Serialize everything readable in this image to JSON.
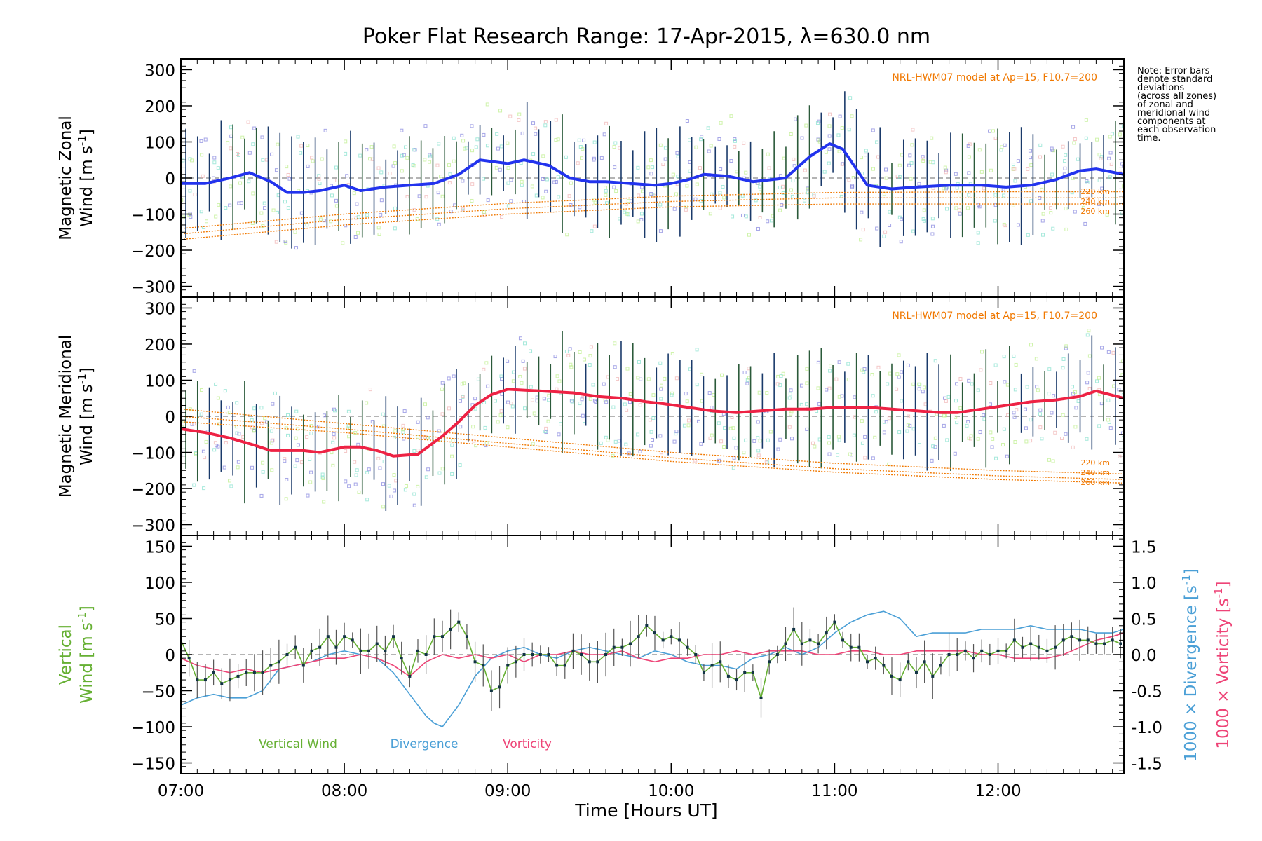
{
  "title": "Poker Flat Research Range: 17-Apr-2015, λ=630.0 nm",
  "note": "Note: Error bars\ndenote standard\ndeviations\n(across all zones)\nof zonal and\nmeridional wind\ncomponents at\neach observation\ntime.",
  "x_axis": {
    "label": "Time [Hours UT]",
    "tick_labels": [
      "07:00",
      "08:00",
      "09:00",
      "10:00",
      "11:00",
      "12:00"
    ]
  },
  "colors": {
    "zonal": "#2233ee",
    "meridional": "#ee2244",
    "model": "#f07800",
    "vertical": "#66b033",
    "divergence": "#4a9fd6",
    "vorticity": "#ee4477",
    "errorbar": "#222222",
    "scatter_a": "#8080dd",
    "scatter_b": "#80e0cc",
    "scatter_c": "#bbee88",
    "scatter_d": "#f0b0b0"
  },
  "chart_data": [
    {
      "type": "line",
      "panel": "zonal",
      "ylabel": "Magnetic Zonal\nWind [m s-1]",
      "ylim": [
        -330,
        330
      ],
      "yticks": [
        -300,
        -200,
        -100,
        0,
        100,
        200,
        300
      ],
      "xlim": [
        7.0,
        12.77
      ],
      "model_label": "NRL-HWM07 model at Ap=15, F10.7=200",
      "model_altitudes": [
        "220 km",
        "240 km",
        "260 km"
      ],
      "series": [
        {
          "name": "Zonal wind",
          "x": [
            7.0,
            7.15,
            7.3,
            7.42,
            7.55,
            7.65,
            7.75,
            7.85,
            8.0,
            8.1,
            8.25,
            8.4,
            8.55,
            8.7,
            8.83,
            9.0,
            9.1,
            9.25,
            9.38,
            9.5,
            9.6,
            9.75,
            9.9,
            10.0,
            10.1,
            10.2,
            10.35,
            10.5,
            10.6,
            10.7,
            10.85,
            10.97,
            11.05,
            11.2,
            11.35,
            11.5,
            11.7,
            11.9,
            12.05,
            12.2,
            12.35,
            12.5,
            12.6,
            12.77
          ],
          "values": [
            -15,
            -15,
            0,
            15,
            -10,
            -40,
            -40,
            -35,
            -20,
            -35,
            -25,
            -20,
            -15,
            10,
            50,
            40,
            50,
            35,
            0,
            -10,
            -10,
            -15,
            -20,
            -15,
            -5,
            10,
            5,
            -10,
            -5,
            0,
            60,
            95,
            80,
            -20,
            -30,
            -25,
            -20,
            -20,
            -25,
            -20,
            -5,
            20,
            25,
            10
          ]
        }
      ],
      "model": {
        "x": [
          7.0,
          8.0,
          9.0,
          10.0,
          11.0,
          12.0,
          12.77
        ],
        "220 km": [
          -140,
          -100,
          -70,
          -50,
          -40,
          -38,
          -38
        ],
        "240 km": [
          -155,
          -115,
          -85,
          -65,
          -55,
          -55,
          -55
        ],
        "260 km": [
          -170,
          -130,
          -100,
          -80,
          -72,
          -72,
          -72
        ]
      }
    },
    {
      "type": "line",
      "panel": "meridional",
      "ylabel": "Magnetic Meridional\nWind [m s-1]",
      "ylim": [
        -330,
        330
      ],
      "yticks": [
        -300,
        -200,
        -100,
        0,
        100,
        200,
        300
      ],
      "xlim": [
        7.0,
        12.77
      ],
      "model_label": "NRL-HWM07 model at Ap=15, F10.7=200",
      "model_altitudes": [
        "220 km",
        "240 km",
        "260 km"
      ],
      "series": [
        {
          "name": "Meridional wind",
          "x": [
            7.0,
            7.15,
            7.3,
            7.45,
            7.55,
            7.65,
            7.75,
            7.85,
            8.0,
            8.1,
            8.2,
            8.3,
            8.45,
            8.6,
            8.7,
            8.8,
            8.9,
            9.0,
            9.2,
            9.4,
            9.55,
            9.7,
            9.85,
            9.95,
            10.1,
            10.25,
            10.4,
            10.55,
            10.7,
            10.85,
            11.0,
            11.2,
            11.35,
            11.5,
            11.65,
            11.75,
            11.9,
            12.05,
            12.2,
            12.35,
            12.5,
            12.6,
            12.77
          ],
          "values": [
            -35,
            -45,
            -60,
            -80,
            -95,
            -95,
            -95,
            -100,
            -85,
            -85,
            -95,
            -110,
            -105,
            -55,
            -15,
            30,
            60,
            75,
            70,
            65,
            55,
            50,
            40,
            35,
            25,
            15,
            10,
            15,
            20,
            20,
            25,
            25,
            20,
            15,
            10,
            10,
            20,
            30,
            40,
            45,
            55,
            70,
            50
          ]
        }
      ],
      "model": {
        "x": [
          7.0,
          8.0,
          9.0,
          10.0,
          11.0,
          12.0,
          12.77
        ],
        "220 km": [
          20,
          -20,
          -60,
          -100,
          -130,
          -150,
          -160
        ],
        "240 km": [
          0,
          -35,
          -75,
          -115,
          -145,
          -165,
          -175
        ],
        "260 km": [
          -15,
          -45,
          -85,
          -125,
          -155,
          -175,
          -185
        ]
      }
    },
    {
      "type": "line",
      "panel": "vertical",
      "ylabel": "Vertical\nWind [m s-1]",
      "ylim": [
        -165,
        165
      ],
      "yticks": [
        -150,
        -100,
        -50,
        0,
        50,
        100,
        150
      ],
      "y2label_divergence": "1000 × Divergence [s-1]",
      "y2label_vorticity": "1000 × Vorticity [s-1]",
      "y2lim": [
        -1.65,
        1.65
      ],
      "y2ticks": [
        -1.5,
        -1.0,
        -0.5,
        0.0,
        0.5,
        1.0,
        1.5
      ],
      "xlim": [
        7.0,
        12.77
      ],
      "legend": [
        "Vertical Wind",
        "Divergence",
        "Vorticity"
      ],
      "series": [
        {
          "name": "Vertical Wind",
          "x": [
            7.0,
            7.05,
            7.1,
            7.15,
            7.2,
            7.25,
            7.3,
            7.35,
            7.4,
            7.45,
            7.5,
            7.55,
            7.6,
            7.65,
            7.7,
            7.75,
            7.8,
            7.85,
            7.9,
            7.95,
            8.0,
            8.05,
            8.1,
            8.15,
            8.2,
            8.25,
            8.3,
            8.35,
            8.4,
            8.45,
            8.5,
            8.55,
            8.6,
            8.65,
            8.7,
            8.75,
            8.8,
            8.85,
            8.9,
            8.95,
            9.0,
            9.05,
            9.1,
            9.15,
            9.2,
            9.25,
            9.3,
            9.35,
            9.4,
            9.45,
            9.5,
            9.55,
            9.6,
            9.65,
            9.7,
            9.75,
            9.8,
            9.85,
            9.9,
            9.95,
            10.0,
            10.05,
            10.1,
            10.15,
            10.2,
            10.25,
            10.3,
            10.35,
            10.4,
            10.45,
            10.5,
            10.55,
            10.6,
            10.65,
            10.7,
            10.75,
            10.8,
            10.85,
            10.9,
            10.95,
            11.0,
            11.05,
            11.1,
            11.15,
            11.2,
            11.25,
            11.3,
            11.35,
            11.4,
            11.45,
            11.5,
            11.55,
            11.6,
            11.65,
            11.7,
            11.75,
            11.8,
            11.85,
            11.9,
            11.95,
            12.0,
            12.05,
            12.1,
            12.15,
            12.2,
            12.25,
            12.3,
            12.35,
            12.4,
            12.45,
            12.5,
            12.55,
            12.6,
            12.65,
            12.7,
            12.75
          ],
          "values": [
            20,
            -5,
            -35,
            -35,
            -25,
            -40,
            -35,
            -30,
            -25,
            -25,
            -25,
            -15,
            -10,
            0,
            10,
            -15,
            5,
            10,
            25,
            10,
            25,
            20,
            5,
            5,
            15,
            5,
            25,
            -5,
            -30,
            5,
            0,
            25,
            25,
            35,
            45,
            25,
            -10,
            -15,
            -50,
            -45,
            -15,
            -10,
            0,
            0,
            0,
            0,
            -15,
            -15,
            5,
            0,
            -10,
            -10,
            0,
            10,
            10,
            15,
            25,
            40,
            30,
            20,
            25,
            20,
            10,
            0,
            -25,
            -15,
            -10,
            -30,
            -35,
            -25,
            -25,
            -60,
            -10,
            0,
            15,
            35,
            15,
            20,
            15,
            30,
            45,
            20,
            10,
            10,
            -10,
            -5,
            -15,
            -30,
            -35,
            -10,
            -25,
            -10,
            -30,
            -15,
            0,
            0,
            5,
            -5,
            5,
            0,
            5,
            5,
            20,
            10,
            15,
            10,
            5,
            10,
            20,
            25,
            20,
            20,
            15,
            15,
            20,
            15
          ]
        },
        {
          "name": "Divergence",
          "x": [
            7.0,
            7.1,
            7.2,
            7.3,
            7.4,
            7.5,
            7.6,
            7.7,
            7.8,
            7.9,
            8.0,
            8.1,
            8.2,
            8.3,
            8.4,
            8.5,
            8.55,
            8.6,
            8.7,
            8.8,
            8.9,
            9.0,
            9.1,
            9.2,
            9.3,
            9.4,
            9.5,
            9.6,
            9.7,
            9.8,
            9.9,
            10.0,
            10.1,
            10.2,
            10.3,
            10.4,
            10.5,
            10.6,
            10.7,
            10.8,
            10.9,
            11.0,
            11.1,
            11.2,
            11.3,
            11.4,
            11.5,
            11.6,
            11.7,
            11.8,
            11.9,
            12.0,
            12.1,
            12.2,
            12.3,
            12.4,
            12.5,
            12.6,
            12.7,
            12.77
          ],
          "values": [
            -0.7,
            -0.6,
            -0.55,
            -0.6,
            -0.6,
            -0.5,
            -0.2,
            -0.15,
            -0.1,
            0.0,
            0.05,
            0.0,
            -0.05,
            -0.25,
            -0.55,
            -0.85,
            -0.95,
            -1.0,
            -0.7,
            -0.3,
            -0.05,
            0.05,
            0.1,
            0.0,
            -0.05,
            0.05,
            0.1,
            0.05,
            0.0,
            -0.05,
            0.05,
            0.0,
            -0.1,
            -0.15,
            -0.15,
            -0.2,
            -0.05,
            0.0,
            0.1,
            0.0,
            0.1,
            0.3,
            0.45,
            0.55,
            0.6,
            0.5,
            0.25,
            0.3,
            0.3,
            0.3,
            0.35,
            0.35,
            0.35,
            0.4,
            0.35,
            0.35,
            0.35,
            0.3,
            0.3,
            0.35
          ]
        },
        {
          "name": "Vorticity",
          "x": [
            7.0,
            7.1,
            7.2,
            7.3,
            7.4,
            7.5,
            7.6,
            7.7,
            7.8,
            7.9,
            8.0,
            8.1,
            8.2,
            8.3,
            8.4,
            8.5,
            8.6,
            8.7,
            8.8,
            8.9,
            9.0,
            9.1,
            9.2,
            9.3,
            9.4,
            9.5,
            9.6,
            9.7,
            9.8,
            9.9,
            10.0,
            10.1,
            10.2,
            10.3,
            10.4,
            10.5,
            10.6,
            10.7,
            10.8,
            10.9,
            11.0,
            11.1,
            11.2,
            11.3,
            11.4,
            11.5,
            11.6,
            11.7,
            11.8,
            11.9,
            12.0,
            12.1,
            12.2,
            12.3,
            12.4,
            12.5,
            12.6,
            12.7,
            12.77
          ],
          "values": [
            -0.05,
            -0.15,
            -0.2,
            -0.25,
            -0.2,
            -0.25,
            -0.2,
            -0.15,
            -0.1,
            -0.05,
            -0.05,
            0.0,
            -0.05,
            -0.15,
            -0.3,
            -0.1,
            0.0,
            -0.05,
            0.0,
            -0.05,
            0.0,
            -0.1,
            0.0,
            0.0,
            0.05,
            0.0,
            0.0,
            0.05,
            -0.05,
            -0.1,
            -0.05,
            -0.05,
            0.0,
            0.0,
            0.05,
            0.0,
            0.05,
            0.05,
            0.05,
            0.0,
            0.0,
            0.05,
            0.05,
            0.0,
            0.0,
            0.05,
            0.05,
            0.05,
            0.05,
            0.0,
            0.0,
            -0.05,
            -0.05,
            -0.05,
            0.0,
            0.1,
            0.2,
            0.25,
            0.3
          ]
        }
      ]
    }
  ]
}
